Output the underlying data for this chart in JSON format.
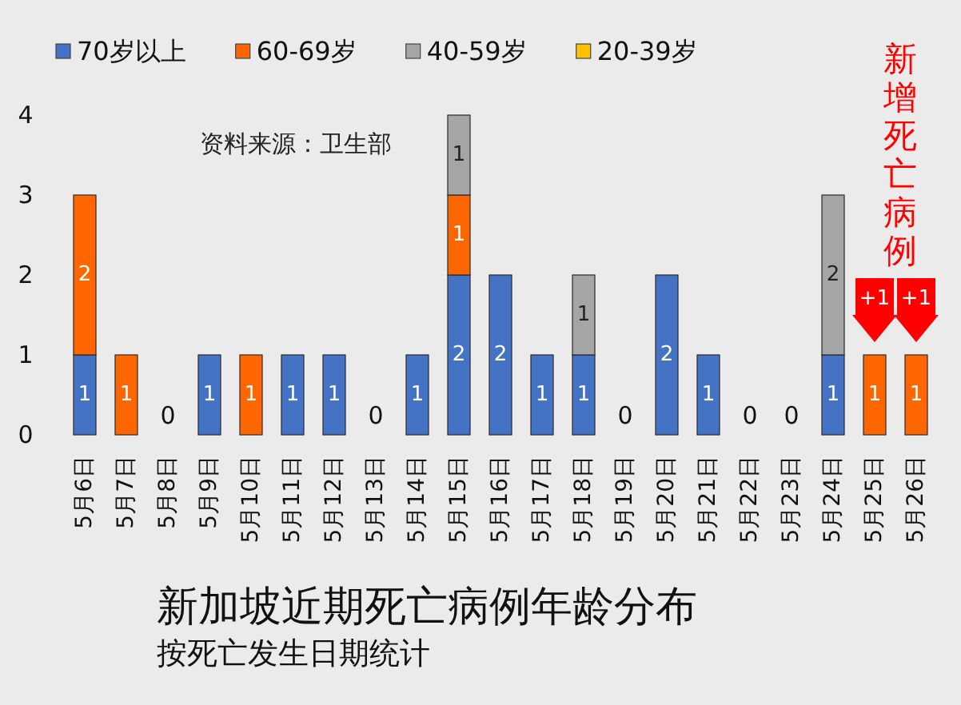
{
  "chart_data": {
    "type": "bar",
    "title": "新加坡近期死亡病例年龄分布",
    "subtitle": "按死亡发生日期统计",
    "categories": [
      "5月6日",
      "5月7日",
      "5月8日",
      "5月9日",
      "5月10日",
      "5月11日",
      "5月12日",
      "5月13日",
      "5月14日",
      "5月15日",
      "5月16日",
      "5月17日",
      "5月18日",
      "5月19日",
      "5月20日",
      "5月21日",
      "5月22日",
      "5月23日",
      "5月24日",
      "5月25日",
      "5月26日"
    ],
    "series": [
      {
        "name": "70岁以上",
        "color": "#4472c4",
        "values": [
          1,
          null,
          null,
          1,
          null,
          1,
          1,
          null,
          1,
          2,
          2,
          1,
          1,
          null,
          2,
          1,
          null,
          null,
          1,
          null,
          null
        ]
      },
      {
        "name": "60-69岁",
        "color": "#ff6600",
        "values": [
          2,
          1,
          null,
          null,
          1,
          null,
          null,
          null,
          null,
          1,
          null,
          null,
          null,
          null,
          null,
          null,
          null,
          null,
          null,
          1,
          1
        ]
      },
      {
        "name": "40-59岁",
        "color": "#a5a5a5",
        "values": [
          null,
          null,
          null,
          null,
          null,
          null,
          null,
          null,
          null,
          1,
          null,
          null,
          1,
          null,
          null,
          null,
          null,
          null,
          2,
          null,
          null
        ]
      },
      {
        "name": "20-39岁",
        "color": "#ffc000",
        "values": [
          null,
          null,
          null,
          null,
          null,
          null,
          null,
          null,
          null,
          null,
          null,
          null,
          null,
          null,
          null,
          null,
          null,
          null,
          null,
          null,
          null
        ]
      }
    ],
    "stacked": true,
    "ylim": [
      0,
      4
    ],
    "yticks": [
      0,
      1,
      2,
      3,
      4
    ],
    "data_labels": true,
    "totals": [
      null,
      null,
      "0",
      null,
      null,
      null,
      null,
      "0",
      null,
      null,
      null,
      null,
      null,
      "0",
      null,
      null,
      "0",
      "0",
      null,
      null,
      null
    ],
    "legend": "top",
    "annotations": [
      "资料来源：卫生部",
      "新增死亡病例",
      {
        "text": "+1",
        "x": "5月25日",
        "y": 1
      },
      {
        "text": "+1",
        "x": "5月26日",
        "y": 1
      }
    ]
  }
}
